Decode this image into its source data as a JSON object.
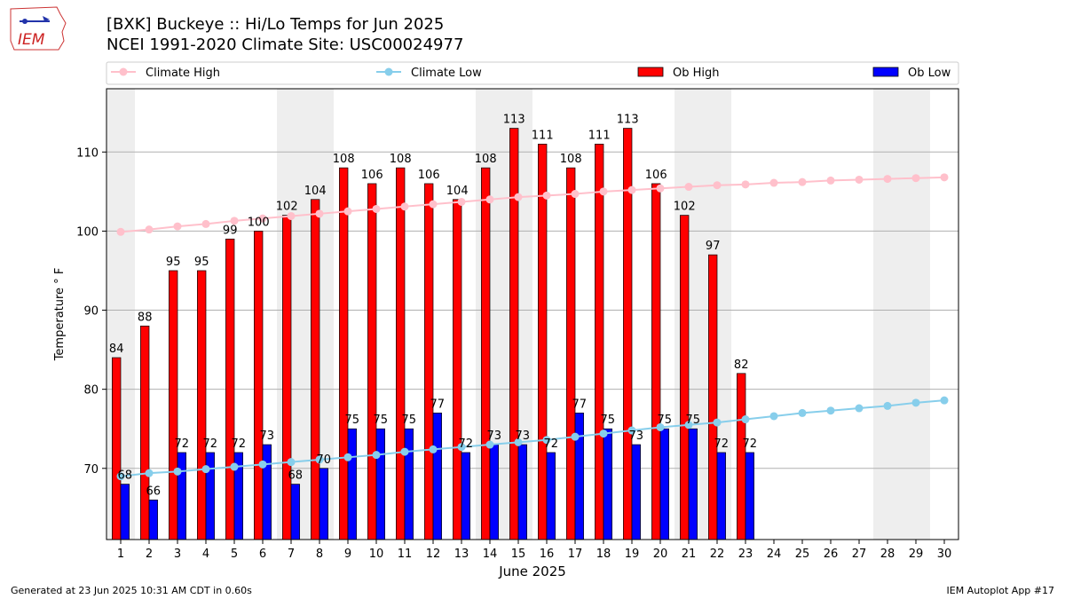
{
  "header": {
    "title_line1": "[BXK] Buckeye :: Hi/Lo Temps for Jun 2025",
    "title_line2": "NCEI 1991-2020 Climate Site: USC00024977",
    "logo_text": "IEM"
  },
  "footer": {
    "left": "Generated at 23 Jun 2025 10:31 AM CDT in 0.60s",
    "right": "IEM Autoplot App #17"
  },
  "colors": {
    "ob_high": "#ff0000",
    "ob_low": "#0000ff",
    "climate_high": "#ffc0cb",
    "climate_low": "#87ceeb",
    "weekend_shade": "#eeeeee"
  },
  "chart_data": {
    "type": "bar",
    "xlabel": "June 2025",
    "ylabel": "Temperature ° F",
    "ylim": [
      61,
      118
    ],
    "xlim": [
      0.5,
      30.5
    ],
    "yticks": [
      70,
      80,
      90,
      100,
      110
    ],
    "grid": "horizontal",
    "legend_position": "top",
    "legend": [
      "Climate High",
      "Climate Low",
      "Ob High",
      "Ob Low"
    ],
    "shaded_days": [
      1,
      7,
      8,
      14,
      15,
      21,
      22,
      28,
      29
    ],
    "days": [
      1,
      2,
      3,
      4,
      5,
      6,
      7,
      8,
      9,
      10,
      11,
      12,
      13,
      14,
      15,
      16,
      17,
      18,
      19,
      20,
      21,
      22,
      23,
      24,
      25,
      26,
      27,
      28,
      29,
      30
    ],
    "ob_high": [
      84,
      88,
      95,
      95,
      99,
      100,
      102,
      104,
      108,
      106,
      108,
      106,
      104,
      108,
      113,
      111,
      108,
      111,
      113,
      106,
      102,
      97,
      82
    ],
    "ob_low": [
      68,
      66,
      72,
      72,
      72,
      73,
      68,
      70,
      75,
      75,
      75,
      77,
      72,
      73,
      73,
      72,
      77,
      75,
      73,
      75,
      75,
      72,
      72
    ],
    "climate_high": [
      99.9,
      100.2,
      100.6,
      100.9,
      101.3,
      101.6,
      101.9,
      102.2,
      102.5,
      102.8,
      103.1,
      103.4,
      103.7,
      104.0,
      104.3,
      104.5,
      104.7,
      105.0,
      105.2,
      105.4,
      105.6,
      105.8,
      105.9,
      106.1,
      106.2,
      106.4,
      106.5,
      106.6,
      106.7,
      106.8
    ],
    "climate_low": [
      69.0,
      69.4,
      69.6,
      69.9,
      70.2,
      70.5,
      70.8,
      71.1,
      71.4,
      71.7,
      72.1,
      72.4,
      72.7,
      73.0,
      73.3,
      73.6,
      74.0,
      74.4,
      74.8,
      75.2,
      75.5,
      75.8,
      76.2,
      76.6,
      77.0,
      77.3,
      77.6,
      77.9,
      78.3,
      78.6
    ]
  }
}
